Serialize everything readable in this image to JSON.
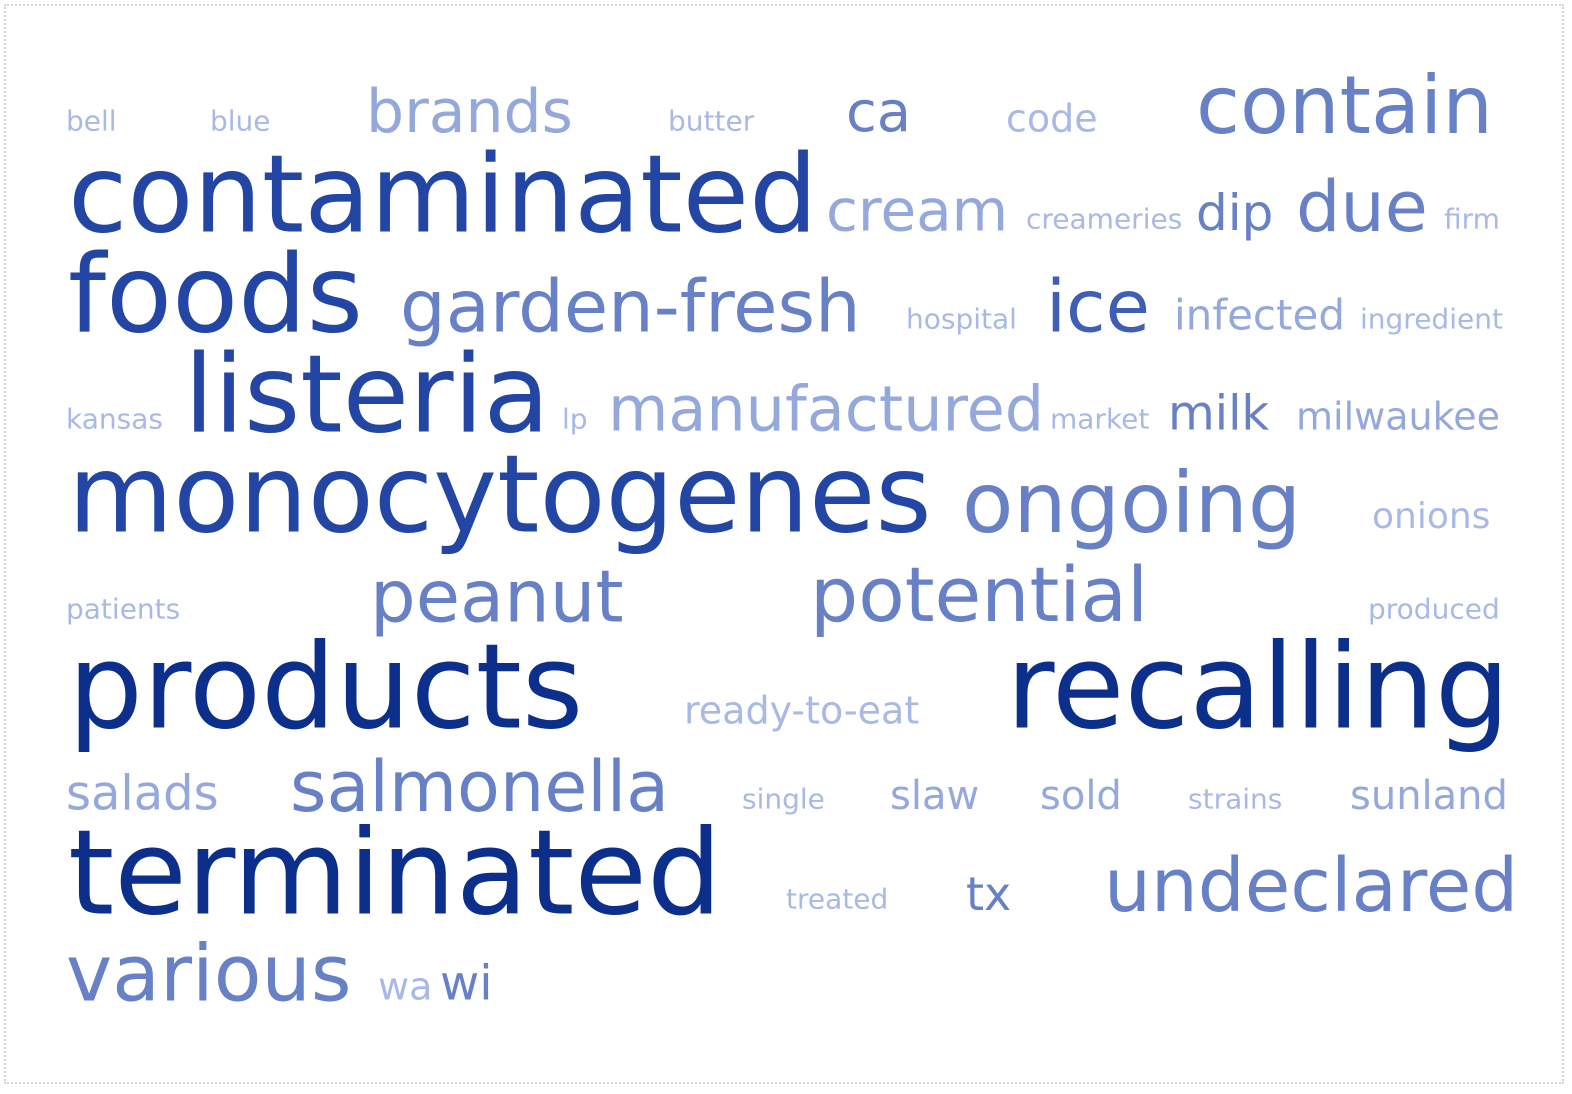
{
  "word_cloud": {
    "colors": {
      "darkest": "#0d2f8c",
      "dark": "#2346a4",
      "medium_dark": "#3f5eb5",
      "medium": "#6780c6",
      "light": "#94a8dc",
      "lightest": "#a8b9e6"
    },
    "words": [
      {
        "text": "bell"
      },
      {
        "text": "blue"
      },
      {
        "text": "brands"
      },
      {
        "text": "butter"
      },
      {
        "text": "ca"
      },
      {
        "text": "code"
      },
      {
        "text": "contain"
      },
      {
        "text": "contaminated"
      },
      {
        "text": "cream"
      },
      {
        "text": "creameries"
      },
      {
        "text": "dip"
      },
      {
        "text": "due"
      },
      {
        "text": "firm"
      },
      {
        "text": "foods"
      },
      {
        "text": "garden-fresh"
      },
      {
        "text": "hospital"
      },
      {
        "text": "ice"
      },
      {
        "text": "infected"
      },
      {
        "text": "ingredient"
      },
      {
        "text": "kansas"
      },
      {
        "text": "listeria"
      },
      {
        "text": "lp"
      },
      {
        "text": "manufactured"
      },
      {
        "text": "market"
      },
      {
        "text": "milk"
      },
      {
        "text": "milwaukee"
      },
      {
        "text": "monocytogenes"
      },
      {
        "text": "ongoing"
      },
      {
        "text": "onions"
      },
      {
        "text": "patients"
      },
      {
        "text": "peanut"
      },
      {
        "text": "potential"
      },
      {
        "text": "produced"
      },
      {
        "text": "products"
      },
      {
        "text": "ready-to-eat"
      },
      {
        "text": "recalling"
      },
      {
        "text": "salads"
      },
      {
        "text": "salmonella"
      },
      {
        "text": "single"
      },
      {
        "text": "slaw"
      },
      {
        "text": "sold"
      },
      {
        "text": "strains"
      },
      {
        "text": "sunland"
      },
      {
        "text": "terminated"
      },
      {
        "text": "treated"
      },
      {
        "text": "tx"
      },
      {
        "text": "undeclared"
      },
      {
        "text": "various"
      },
      {
        "text": "wa"
      },
      {
        "text": "wi"
      }
    ]
  }
}
